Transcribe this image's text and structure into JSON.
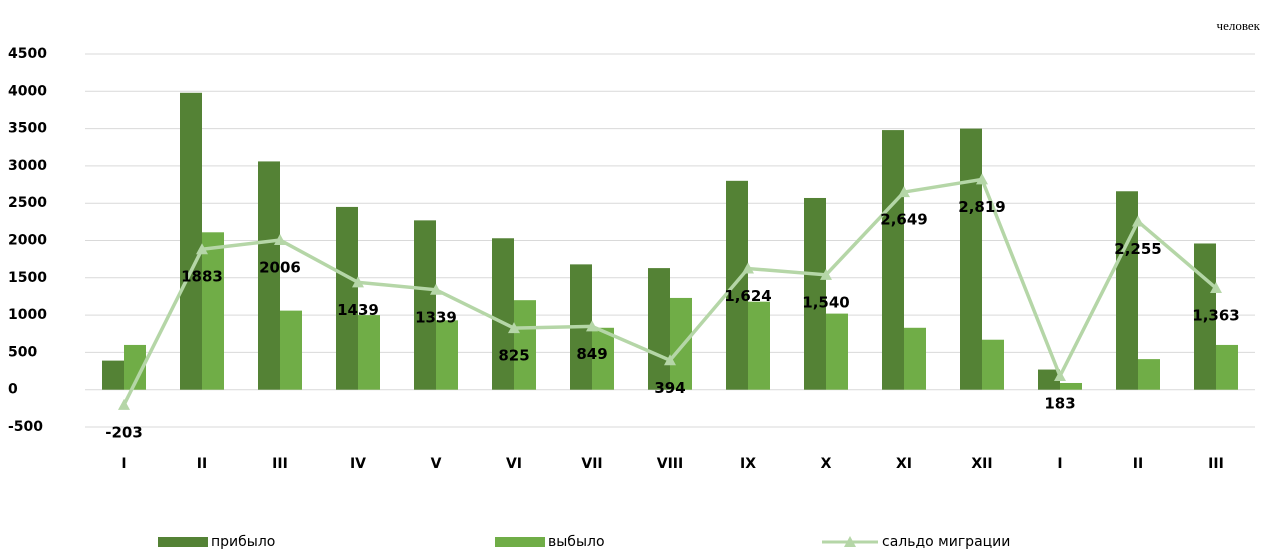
{
  "chart_data": {
    "type": "bar",
    "unit": "человек",
    "categories": [
      "I",
      "II",
      "III",
      "IV",
      "V",
      "VI",
      "VII",
      "VIII",
      "IX",
      "X",
      "XI",
      "XII",
      "I",
      "II",
      "III"
    ],
    "series": [
      {
        "name": "прибыло",
        "color": "#548235",
        "values": [
          390,
          3980,
          3060,
          2450,
          2270,
          2030,
          1680,
          1630,
          2800,
          2570,
          3480,
          3500,
          270,
          2660,
          1960
        ]
      },
      {
        "name": "выбыло",
        "color": "#70ad47",
        "values": [
          600,
          2110,
          1060,
          1000,
          930,
          1200,
          830,
          1230,
          1180,
          1020,
          830,
          670,
          90,
          410,
          600
        ]
      },
      {
        "name": "сальдо миграции",
        "type": "line",
        "color": "#b5d6a7",
        "values": [
          -203,
          1883,
          2006,
          1439,
          1339,
          825,
          849,
          394,
          1624,
          1540,
          2649,
          2819,
          183,
          2255,
          1363
        ],
        "value_labels": [
          "-203",
          "1883",
          "2006",
          "1439",
          "1339",
          "825",
          "849",
          "394",
          "1,624",
          "1,540",
          "2,649",
          "2,819",
          "183",
          "2,255",
          "1,363"
        ]
      }
    ],
    "ylim": [
      -500,
      4500
    ],
    "yticks": [
      -500,
      0,
      500,
      1000,
      1500,
      2000,
      2500,
      3000,
      3500,
      4000,
      4500
    ],
    "grid": true,
    "legend": "bottom"
  }
}
